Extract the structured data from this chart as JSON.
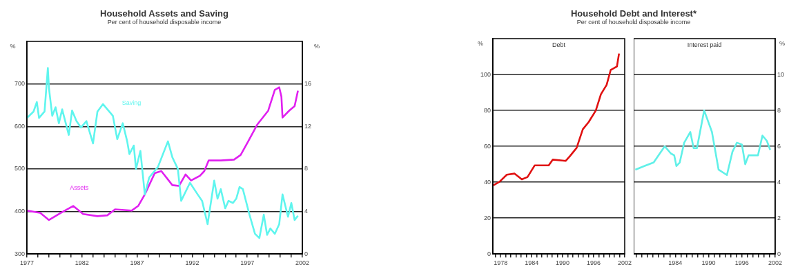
{
  "chart_data": [
    {
      "type": "line",
      "title": "Household Assets and Saving",
      "subtitle": "Per cent of household disposable income",
      "ylabel": "%",
      "y2label": "%",
      "xlim": [
        1977,
        2002
      ],
      "xticks": [
        1977,
        {
          "value": 1978,
          "label": null
        },
        {
          "value": 1979,
          "label": null
        },
        {
          "value": 1980,
          "label": null
        },
        {
          "value": 1981,
          "label": null
        },
        1982,
        {
          "value": 1983,
          "label": null
        },
        {
          "value": 1984,
          "label": null
        },
        {
          "value": 1985,
          "label": null
        },
        {
          "value": 1986,
          "label": null
        },
        1987,
        {
          "value": 1988,
          "label": null
        },
        {
          "value": 1989,
          "label": null
        },
        {
          "value": 1990,
          "label": null
        },
        {
          "value": 1991,
          "label": null
        },
        1992,
        {
          "value": 1993,
          "label": null
        },
        {
          "value": 1994,
          "label": null
        },
        {
          "value": 1995,
          "label": null
        },
        {
          "value": 1996,
          "label": null
        },
        1997,
        {
          "value": 1998,
          "label": null
        },
        {
          "value": 1999,
          "label": null
        },
        {
          "value": 2000,
          "label": null
        },
        {
          "value": 2001,
          "label": null
        },
        2002
      ],
      "ylim": [
        300,
        800
      ],
      "yticks": [
        300,
        400,
        500,
        600,
        700
      ],
      "y2lim": [
        0,
        20
      ],
      "y2ticks": [
        0,
        4,
        8,
        12,
        16
      ],
      "grid": "y",
      "legend": false,
      "series": [
        {
          "name": "Saving",
          "color": "#5ff5ee",
          "axis": "y2",
          "x": [
            1977.0,
            1977.6,
            1977.9,
            1978.1,
            1978.6,
            1978.9,
            1979.0,
            1979.3,
            1979.6,
            1979.9,
            1980.2,
            1980.8,
            1981.1,
            1981.5,
            1981.9,
            1982.4,
            1983.0,
            1983.4,
            1983.9,
            1984.8,
            1985.2,
            1985.7,
            1986.1,
            1986.3,
            1986.7,
            1986.9,
            1987.3,
            1987.7,
            1988.1,
            1988.9,
            1989.8,
            1990.2,
            1990.7,
            1991.0,
            1991.8,
            1992.5,
            1992.9,
            1993.4,
            1994.0,
            1994.3,
            1994.6,
            1995.0,
            1995.3,
            1995.7,
            1996.0,
            1996.3,
            1996.6,
            1997.2,
            1997.7,
            1998.1,
            1998.5,
            1998.8,
            1999.1,
            1999.5,
            1999.9,
            2000.2,
            2000.7,
            2001.0,
            2001.3,
            2001.6
          ],
          "values": [
            12.8,
            13.4,
            14.3,
            12.8,
            13.4,
            17.5,
            15.6,
            13.0,
            13.8,
            12.3,
            13.6,
            11.2,
            13.5,
            12.5,
            11.9,
            12.5,
            10.4,
            13.4,
            14.1,
            13.0,
            10.8,
            12.3,
            10.6,
            9.4,
            10.2,
            8.0,
            9.7,
            5.6,
            7.2,
            8.2,
            10.6,
            9.1,
            8.0,
            5.0,
            6.7,
            5.6,
            5.0,
            2.8,
            6.9,
            5.2,
            6.1,
            4.3,
            5.0,
            4.8,
            5.2,
            6.3,
            6.1,
            3.7,
            1.9,
            1.5,
            3.7,
            1.8,
            2.4,
            1.9,
            2.8,
            5.6,
            3.5,
            4.8,
            3.2,
            3.6
          ]
        },
        {
          "name": "Assets",
          "color": "#e020f0",
          "x": [
            1977.0,
            1978.2,
            1979.0,
            1980.1,
            1981.2,
            1982.1,
            1983.4,
            1984.3,
            1985.0,
            1986.5,
            1987.1,
            1987.7,
            1988.6,
            1989.2,
            1990.2,
            1990.8,
            1991.4,
            1991.9,
            1992.7,
            1993.1,
            1993.5,
            1994.6,
            1995.8,
            1996.4,
            1997.0,
            1997.9,
            1998.9,
            1999.5,
            1999.9,
            2000.1,
            2000.2,
            2000.8,
            2001.3,
            2001.6
          ],
          "values": [
            402,
            397,
            380,
            397,
            413,
            394,
            389,
            391,
            405,
            402,
            413,
            440,
            490,
            495,
            462,
            460,
            487,
            473,
            484,
            495,
            520,
            520,
            522,
            533,
            561,
            604,
            637,
            686,
            692,
            670,
            621,
            637,
            648,
            684
          ]
        }
      ]
    },
    {
      "type": "line",
      "title": "Household Debt and Interest*",
      "subtitle": "Per cent of household disposable income",
      "ylabel": "%",
      "xlim": [
        1976.5,
        2002
      ],
      "xticks": [
        {
          "value": 1977,
          "label": null
        },
        1978,
        {
          "value": 1979,
          "label": null
        },
        {
          "value": 1980,
          "label": null
        },
        {
          "value": 1981,
          "label": null
        },
        {
          "value": 1982,
          "label": null
        },
        {
          "value": 1983,
          "label": null
        },
        1984,
        {
          "value": 1985,
          "label": null
        },
        {
          "value": 1986,
          "label": null
        },
        {
          "value": 1987,
          "label": null
        },
        {
          "value": 1988,
          "label": null
        },
        {
          "value": 1989,
          "label": null
        },
        1990,
        {
          "value": 1991,
          "label": null
        },
        {
          "value": 1992,
          "label": null
        },
        {
          "value": 1993,
          "label": null
        },
        {
          "value": 1994,
          "label": null
        },
        {
          "value": 1995,
          "label": null
        },
        1996,
        {
          "value": 1997,
          "label": null
        },
        {
          "value": 1998,
          "label": null
        },
        {
          "value": 1999,
          "label": null
        },
        {
          "value": 2000,
          "label": null
        },
        {
          "value": 2001,
          "label": null
        },
        2002
      ],
      "ylim": [
        0,
        120
      ],
      "yticks": [
        0,
        20,
        40,
        60,
        80,
        100
      ],
      "grid": "y",
      "legend": false,
      "series": [
        {
          "name": "Debt",
          "color": "#e01010",
          "x": [
            1976.6,
            1977.8,
            1979.2,
            1980.7,
            1982.1,
            1983.2,
            1984.6,
            1987.3,
            1988.1,
            1990.6,
            1991.4,
            1992.7,
            1993.9,
            1995.0,
            1996.4,
            1997.4,
            1998.5,
            1999.3,
            2000.5,
            2000.9
          ],
          "values": [
            38.3,
            40.3,
            44.2,
            44.8,
            41.6,
            42.9,
            49.4,
            49.4,
            52.6,
            51.9,
            54.5,
            59.1,
            69.5,
            73.4,
            79.9,
            89.0,
            94.2,
            102.6,
            104.5,
            111.7
          ]
        }
      ]
    },
    {
      "type": "line",
      "y2label": "%",
      "xlim": [
        1976.5,
        2002
      ],
      "xticks": [
        {
          "value": 1977,
          "label": null
        },
        {
          "value": 1978,
          "label": null
        },
        {
          "value": 1979,
          "label": null
        },
        {
          "value": 1980,
          "label": null
        },
        {
          "value": 1981,
          "label": null
        },
        {
          "value": 1982,
          "label": null
        },
        {
          "value": 1983,
          "label": null
        },
        1984,
        {
          "value": 1985,
          "label": null
        },
        {
          "value": 1986,
          "label": null
        },
        {
          "value": 1987,
          "label": null
        },
        {
          "value": 1988,
          "label": null
        },
        {
          "value": 1989,
          "label": null
        },
        1990,
        {
          "value": 1991,
          "label": null
        },
        {
          "value": 1992,
          "label": null
        },
        {
          "value": 1993,
          "label": null
        },
        {
          "value": 1994,
          "label": null
        },
        {
          "value": 1995,
          "label": null
        },
        1996,
        {
          "value": 1997,
          "label": null
        },
        {
          "value": 1998,
          "label": null
        },
        {
          "value": 1999,
          "label": null
        },
        {
          "value": 2000,
          "label": null
        },
        {
          "value": 2001,
          "label": null
        },
        2002
      ],
      "y2lim": [
        0,
        12
      ],
      "y2ticks": [
        0,
        2,
        4,
        6,
        8,
        10
      ],
      "grid": "y",
      "legend": false,
      "series": [
        {
          "name": "Interest paid",
          "color": "#60f0e8",
          "axis": "y2",
          "x": [
            1976.8,
            1978.4,
            1980.1,
            1982.1,
            1983.2,
            1983.8,
            1984.2,
            1984.8,
            1985.6,
            1986.7,
            1987.3,
            1987.9,
            1989.2,
            1990.6,
            1991.8,
            1993.3,
            1994.3,
            1995.1,
            1996.0,
            1996.6,
            1997.2,
            1998.9,
            1999.7,
            2000.5,
            2001.1
          ],
          "values": [
            4.7,
            4.9,
            5.1,
            6.0,
            5.6,
            5.5,
            4.9,
            5.1,
            6.2,
            6.8,
            5.9,
            5.9,
            8.0,
            6.8,
            4.7,
            4.4,
            5.7,
            6.2,
            6.1,
            5.0,
            5.5,
            5.5,
            6.6,
            6.3,
            5.8
          ]
        }
      ]
    }
  ]
}
